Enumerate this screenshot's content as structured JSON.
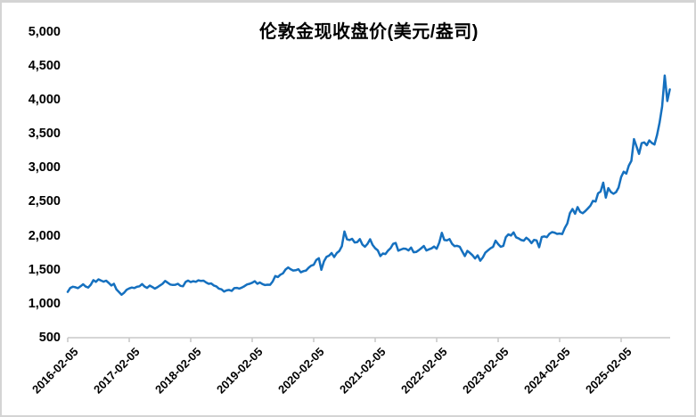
{
  "frame": {
    "background_color": "#ffffff",
    "border_color": "#d4d4d4"
  },
  "chart_data": {
    "type": "line",
    "title": "伦敦金现收盘价(美元/盎司)",
    "series_name": "伦敦金现收盘价",
    "unit": "美元/盎司",
    "line_color": "#1570bf",
    "axis_color": "#c9c9c9",
    "text_color": "#000000",
    "legend": "none",
    "grid": "off",
    "ylim": [
      500,
      5000
    ],
    "y_tick_interval": 500,
    "y_tick_labels": [
      "500",
      "1,000",
      "1,500",
      "2,000",
      "2,500",
      "3,000",
      "3,500",
      "4,000",
      "4,500",
      "5,000"
    ],
    "x_tick_labels": [
      "2016-02-05",
      "2017-02-05",
      "2018-02-05",
      "2019-02-05",
      "2020-02-05",
      "2021-02-05",
      "2022-02-05",
      "2023-02-05",
      "2024-02-05",
      "2025-02-05"
    ],
    "x_start": "2016-02-05",
    "x_end": "2025-11-20",
    "points_per_year": 24,
    "values": [
      1174,
      1232,
      1250,
      1242,
      1228,
      1256,
      1286,
      1252,
      1238,
      1280,
      1346,
      1322,
      1358,
      1340,
      1324,
      1338,
      1306,
      1268,
      1292,
      1212,
      1172,
      1132,
      1162,
      1205,
      1225,
      1238,
      1230,
      1248,
      1256,
      1288,
      1252,
      1232,
      1266,
      1246,
      1222,
      1242,
      1268,
      1292,
      1334,
      1310,
      1282,
      1276,
      1278,
      1292,
      1262,
      1256,
      1320,
      1340,
      1318,
      1330,
      1322,
      1344,
      1334,
      1338,
      1312,
      1292,
      1298,
      1268,
      1254,
      1222,
      1212,
      1178,
      1196,
      1202,
      1188,
      1228,
      1232,
      1222,
      1238,
      1258,
      1284,
      1292,
      1308,
      1330,
      1292,
      1312,
      1288,
      1274,
      1280,
      1278,
      1326,
      1406,
      1392,
      1426,
      1446,
      1502,
      1532,
      1508,
      1488,
      1492,
      1508,
      1462,
      1478,
      1488,
      1528,
      1558,
      1572,
      1642,
      1668,
      1498,
      1622,
      1688,
      1706,
      1744,
      1686,
      1744,
      1776,
      1846,
      2062,
      1946,
      1936,
      1954,
      1900,
      1906,
      1950,
      1870,
      1838,
      1880,
      1948,
      1864,
      1815,
      1784,
      1700,
      1738,
      1730,
      1780,
      1816,
      1880,
      1892,
      1780,
      1796,
      1810,
      1806,
      1782,
      1826,
      1756,
      1760,
      1786,
      1816,
      1848,
      1782,
      1800,
      1814,
      1840,
      1808,
      1898,
      2042,
      1936,
      1930,
      1950,
      1880,
      1846,
      1850,
      1838,
      1766,
      1700,
      1776,
      1746,
      1710,
      1664,
      1710,
      1632,
      1680,
      1750,
      1782,
      1814,
      1836,
      1926,
      1876,
      1836,
      1850,
      1978,
      2020,
      2002,
      2048,
      1976,
      1960,
      1936,
      1926,
      1970,
      1940,
      1890,
      1938,
      1930,
      1830,
      1980,
      1990,
      1978,
      2028,
      2052,
      2044,
      2026,
      2032,
      2024,
      2114,
      2180,
      2330,
      2392,
      2322,
      2420,
      2350,
      2330,
      2362,
      2400,
      2442,
      2512,
      2502,
      2622,
      2650,
      2780,
      2560,
      2700,
      2642,
      2616,
      2640,
      2708,
      2862,
      2940,
      2912,
      3030,
      3100,
      3420,
      3310,
      3202,
      3360,
      3372,
      3330,
      3400,
      3362,
      3340,
      3480,
      3660,
      3900,
      4356,
      3980,
      4150
    ]
  }
}
